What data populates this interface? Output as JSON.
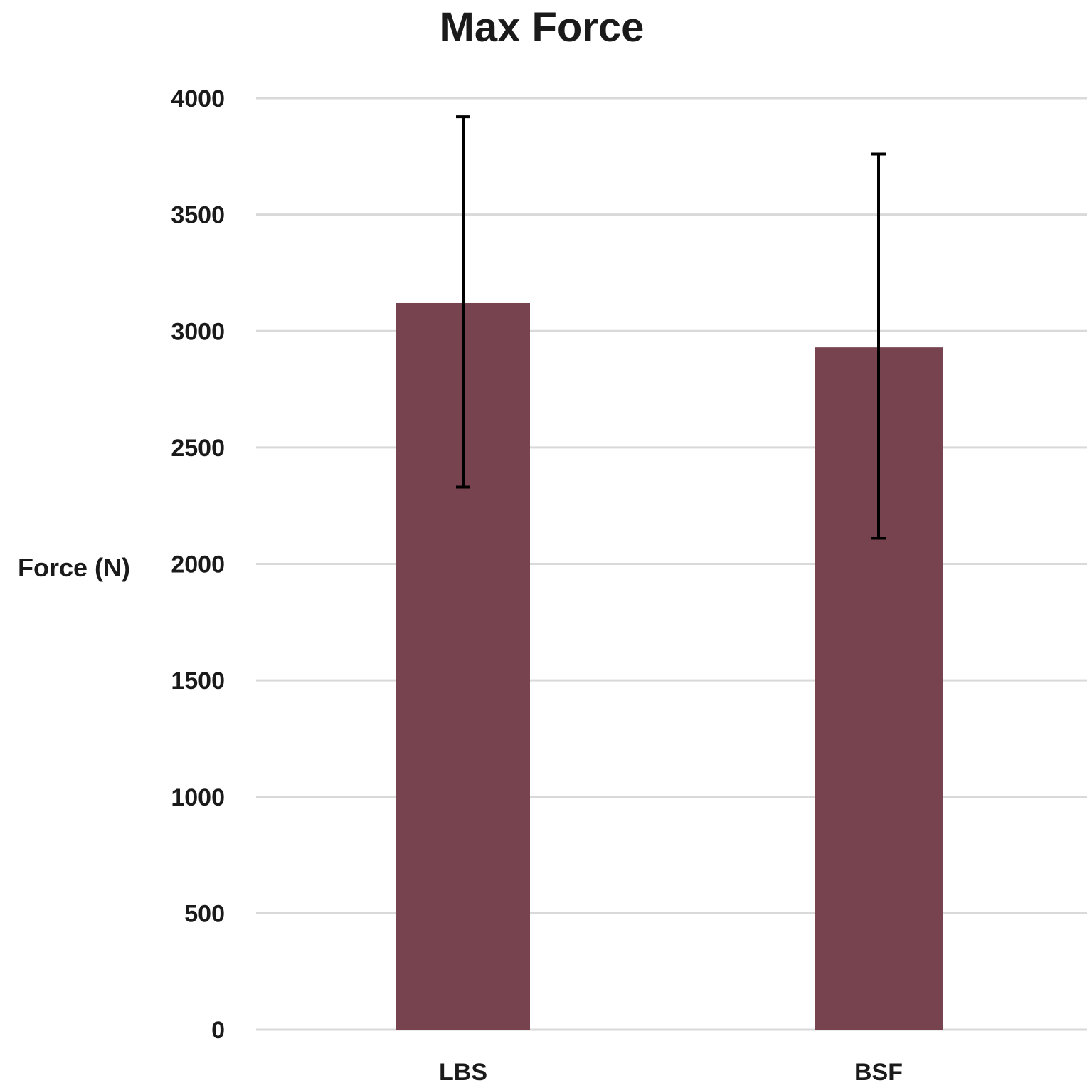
{
  "chart_data": {
    "type": "bar",
    "title": "Max Force",
    "ylabel": "Force (N)",
    "xlabel": "",
    "categories": [
      "LBS",
      "BSF"
    ],
    "values": [
      3120,
      2930
    ],
    "error_low": [
      2330,
      2110
    ],
    "error_high": [
      3920,
      3760
    ],
    "ylim": [
      0,
      4000
    ],
    "yticks": [
      0,
      500,
      1000,
      1500,
      2000,
      2500,
      3000,
      3500,
      4000
    ],
    "ytick_labels": [
      "0",
      "500",
      "1000",
      "1500",
      "2000",
      "2500",
      "3000",
      "3500",
      "4000"
    ],
    "grid": true,
    "legend": "none",
    "bar_color": "#77434f",
    "error_bar_color": "#000000",
    "grid_color": "#d9d9d9"
  }
}
